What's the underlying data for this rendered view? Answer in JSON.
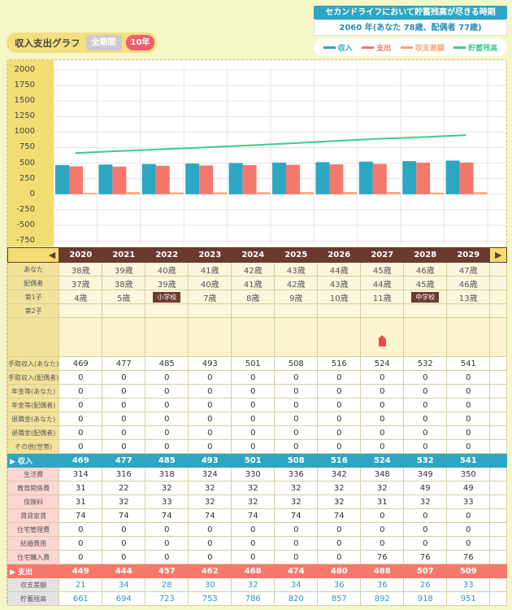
{
  "header": {
    "top_title": "セカンドライフにおいて貯蓄残高が尽きる時期",
    "top_value": "2060 年(あなた 78歳、配偶者 77歳)",
    "graph_title": "収入支出グラフ",
    "btn_all": "全期間",
    "btn_10": "10年"
  },
  "legend": [
    {
      "name": "収入",
      "color": "#2da6c4"
    },
    {
      "name": "支出",
      "color": "#f5786c"
    },
    {
      "name": "収支差額",
      "color": "#f6a57a"
    },
    {
      "name": "貯蓄残高",
      "color": "#3dcb8f"
    }
  ],
  "chart_data": {
    "type": "bar",
    "categories": [
      "2020",
      "2021",
      "2022",
      "2023",
      "2024",
      "2025",
      "2026",
      "2027",
      "2028",
      "2029"
    ],
    "ylim": [
      -800,
      2050
    ],
    "yticks": [
      "2000",
      "1750",
      "1500",
      "1250",
      "1000",
      "750",
      "500",
      "250",
      "0",
      "-250",
      "-500",
      "-750"
    ],
    "series": [
      {
        "name": "収入",
        "type": "bar",
        "color": "#2da6c4",
        "values": [
          469,
          477,
          485,
          493,
          501,
          508,
          516,
          524,
          532,
          541
        ]
      },
      {
        "name": "支出",
        "type": "bar",
        "color": "#f5786c",
        "values": [
          449,
          444,
          457,
          462,
          468,
          474,
          480,
          488,
          507,
          509
        ]
      },
      {
        "name": "収支差額",
        "type": "bar",
        "color": "#f6a57a",
        "values": [
          21,
          34,
          28,
          30,
          32,
          34,
          36,
          36,
          26,
          33
        ]
      },
      {
        "name": "貯蓄残高",
        "type": "line",
        "color": "#3dcb8f",
        "values": [
          661,
          694,
          723,
          753,
          786,
          820,
          857,
          892,
          918,
          951
        ]
      }
    ]
  },
  "table": {
    "arrow_left": "◀",
    "arrow_right": "▶",
    "years": [
      "2020",
      "2021",
      "2022",
      "2023",
      "2024",
      "2025",
      "2026",
      "2027",
      "2028",
      "2029"
    ],
    "people": [
      {
        "label": "あなた",
        "values": [
          "38歳",
          "39歳",
          "40歳",
          "41歳",
          "42歳",
          "43歳",
          "44歳",
          "45歳",
          "46歳",
          "47歳"
        ]
      },
      {
        "label": "配偶者",
        "values": [
          "37歳",
          "38歳",
          "39歳",
          "40歳",
          "41歳",
          "42歳",
          "43歳",
          "44歳",
          "45歳",
          "46歳"
        ]
      },
      {
        "label": "第1子",
        "values": [
          "4歳",
          "5歳",
          "小学校",
          "7歳",
          "8歳",
          "9歳",
          "10歳",
          "11歳",
          "中学校",
          "13歳"
        ]
      },
      {
        "label": "第2子",
        "values": [
          "",
          "",
          "",
          "",
          "",
          "",
          "",
          "",
          "",
          ""
        ]
      }
    ],
    "badge_cells": [
      "2",
      "8"
    ],
    "house_index": 7,
    "income_rows": [
      {
        "label": "手取収入(あなた)",
        "values": [
          "469",
          "477",
          "485",
          "493",
          "501",
          "508",
          "516",
          "524",
          "532",
          "541"
        ]
      },
      {
        "label": "手取収入(配偶者)",
        "values": [
          "0",
          "0",
          "0",
          "0",
          "0",
          "0",
          "0",
          "0",
          "0",
          "0"
        ]
      },
      {
        "label": "年金等(あなた)",
        "values": [
          "0",
          "0",
          "0",
          "0",
          "0",
          "0",
          "0",
          "0",
          "0",
          "0"
        ]
      },
      {
        "label": "年金等(配偶者)",
        "values": [
          "0",
          "0",
          "0",
          "0",
          "0",
          "0",
          "0",
          "0",
          "0",
          "0"
        ]
      },
      {
        "label": "退職金(あなた)",
        "values": [
          "0",
          "0",
          "0",
          "0",
          "0",
          "0",
          "0",
          "0",
          "0",
          "0"
        ]
      },
      {
        "label": "退職金(配偶者)",
        "values": [
          "0",
          "0",
          "0",
          "0",
          "0",
          "0",
          "0",
          "0",
          "0",
          "0"
        ]
      },
      {
        "label": "その他(世帯)",
        "values": [
          "0",
          "0",
          "0",
          "0",
          "0",
          "0",
          "0",
          "0",
          "0",
          "0"
        ]
      }
    ],
    "income_total": {
      "label": "▶ 収入",
      "values": [
        "469",
        "477",
        "485",
        "493",
        "501",
        "508",
        "516",
        "524",
        "532",
        "541"
      ]
    },
    "expense_rows": [
      {
        "label": "生活費",
        "values": [
          "314",
          "316",
          "318",
          "324",
          "330",
          "336",
          "342",
          "348",
          "349",
          "350"
        ]
      },
      {
        "label": "教育関係費",
        "values": [
          "31",
          "22",
          "32",
          "32",
          "32",
          "32",
          "32",
          "32",
          "49",
          "49"
        ]
      },
      {
        "label": "保険料",
        "values": [
          "31",
          "32",
          "33",
          "32",
          "32",
          "32",
          "32",
          "31",
          "32",
          "33"
        ]
      },
      {
        "label": "賃貸家賃",
        "values": [
          "74",
          "74",
          "74",
          "74",
          "74",
          "74",
          "74",
          "0",
          "0",
          "0"
        ]
      },
      {
        "label": "住宅管理費",
        "values": [
          "0",
          "0",
          "0",
          "0",
          "0",
          "0",
          "0",
          "0",
          "0",
          "0"
        ]
      },
      {
        "label": "結婚費用",
        "values": [
          "0",
          "0",
          "0",
          "0",
          "0",
          "0",
          "0",
          "0",
          "0",
          "0"
        ]
      },
      {
        "label": "住宅購入費",
        "values": [
          "0",
          "0",
          "0",
          "0",
          "0",
          "0",
          "0",
          "76",
          "76",
          "76"
        ]
      }
    ],
    "expense_total": {
      "label": "▶ 支出",
      "values": [
        "449",
        "444",
        "457",
        "462",
        "468",
        "474",
        "480",
        "488",
        "507",
        "509"
      ]
    },
    "balance_rows": [
      {
        "label": "収支差額",
        "values": [
          "21",
          "34",
          "28",
          "30",
          "32",
          "34",
          "36",
          "36",
          "26",
          "33"
        ]
      },
      {
        "label": "貯蓄残高",
        "values": [
          "661",
          "694",
          "723",
          "753",
          "786",
          "820",
          "857",
          "892",
          "918",
          "951"
        ]
      }
    ]
  }
}
